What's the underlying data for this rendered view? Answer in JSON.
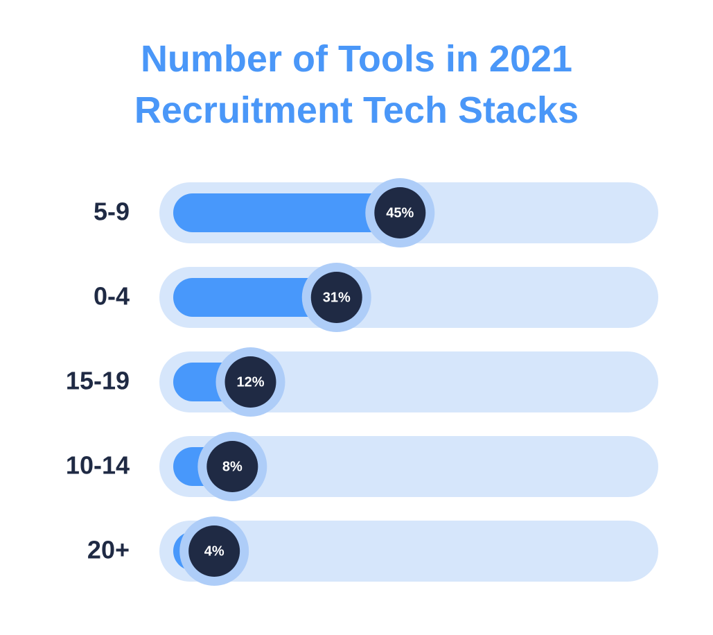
{
  "chart_data": {
    "type": "bar",
    "title": "Number of Tools in 2021 Recruitment Tech Stacks",
    "categories": [
      "5-9",
      "0-4",
      "15-19",
      "10-14",
      "20+"
    ],
    "values": [
      45,
      31,
      12,
      8,
      4
    ],
    "value_labels": [
      "45%",
      "31%",
      "12%",
      "8%",
      "4%"
    ],
    "color": "#4898fb",
    "xlim": [
      0,
      100
    ]
  }
}
